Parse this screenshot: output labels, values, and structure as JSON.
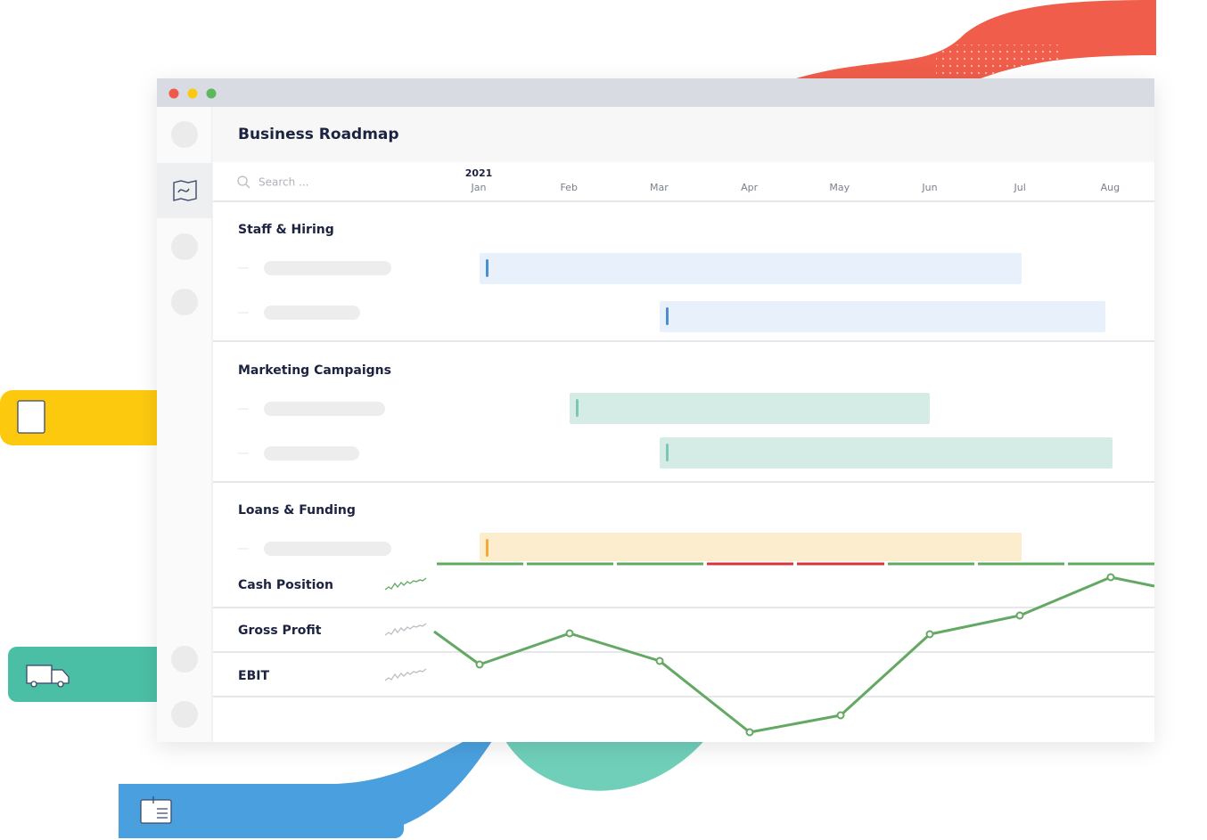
{
  "window": {
    "title": "Business Roadmap",
    "search_placeholder": "Search ...",
    "year": "2021"
  },
  "timeline": {
    "months": [
      "Jan",
      "Feb",
      "Mar",
      "Apr",
      "May",
      "Jun",
      "Jul",
      "Aug"
    ]
  },
  "groups": [
    {
      "title": "Staff & Hiring"
    },
    {
      "title": "Marketing Campaigns"
    },
    {
      "title": "Loans & Funding"
    }
  ],
  "metrics": [
    {
      "label": "Cash Position"
    },
    {
      "label": "Gross Profit"
    },
    {
      "label": "EBIT"
    }
  ]
}
